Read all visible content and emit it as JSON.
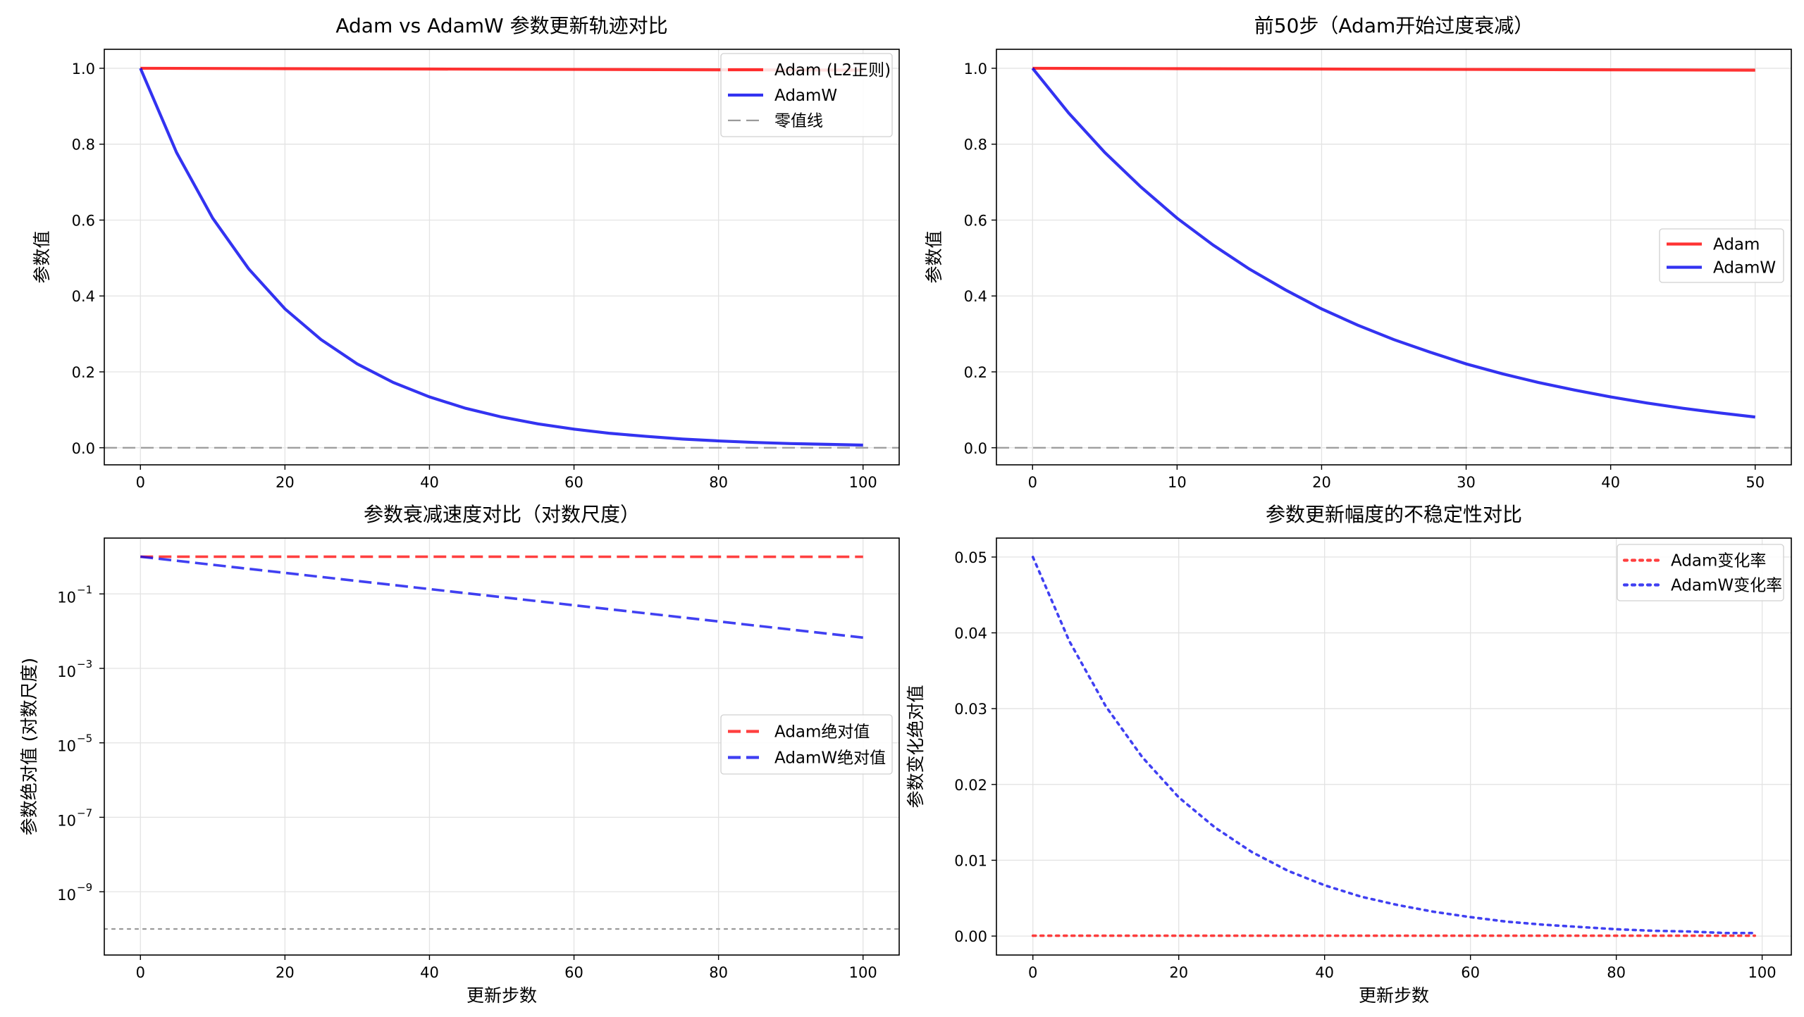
{
  "colors": {
    "adam": "#ff0000",
    "adamw": "#0000ee",
    "zero_line": "#9a9a9a",
    "grid": "#e3e3e3"
  },
  "chart_data": [
    {
      "id": "panel1",
      "type": "line",
      "title": "Adam vs AdamW 参数更新轨迹对比",
      "xlabel": "",
      "ylabel": "参数值",
      "xlim": [
        -5,
        105
      ],
      "ylim": [
        -0.045,
        1.05
      ],
      "xticks": [
        0,
        20,
        40,
        60,
        80,
        100
      ],
      "xtick_labels": [
        "0",
        "20",
        "40",
        "60",
        "80",
        "100"
      ],
      "yticks": [
        0.0,
        0.2,
        0.4,
        0.6,
        0.8,
        1.0
      ],
      "ytick_labels": [
        "0.0",
        "0.2",
        "0.4",
        "0.6",
        "0.8",
        "1.0"
      ],
      "grid": true,
      "legend": "top-right",
      "series": [
        {
          "name": "Adam (L2正则)",
          "style": "solid",
          "color": "#ff0000",
          "x": [
            0,
            20,
            40,
            60,
            80,
            100
          ],
          "y": [
            1.0,
            0.999,
            0.998,
            0.997,
            0.996,
            0.995
          ]
        },
        {
          "name": "AdamW",
          "style": "solid",
          "color": "#0000ee",
          "x": [
            0,
            5,
            10,
            15,
            20,
            25,
            30,
            35,
            40,
            45,
            50,
            55,
            60,
            65,
            70,
            75,
            80,
            85,
            90,
            95,
            100
          ],
          "y": [
            1.0,
            0.778,
            0.605,
            0.471,
            0.366,
            0.285,
            0.221,
            0.172,
            0.134,
            0.104,
            0.081,
            0.063,
            0.049,
            0.038,
            0.03,
            0.023,
            0.018,
            0.014,
            0.011,
            0.009,
            0.007
          ]
        },
        {
          "name": "零值线",
          "style": "dashed",
          "color": "#9a9a9a",
          "hline": 0.0
        }
      ]
    },
    {
      "id": "panel2",
      "type": "line",
      "title": "前50步（Adam开始过度衰减）",
      "xlabel": "",
      "ylabel": "参数值",
      "xlim": [
        -2.5,
        52.5
      ],
      "ylim": [
        -0.045,
        1.05
      ],
      "xticks": [
        0,
        10,
        20,
        30,
        40,
        50
      ],
      "xtick_labels": [
        "0",
        "10",
        "20",
        "30",
        "40",
        "50"
      ],
      "yticks": [
        0.0,
        0.2,
        0.4,
        0.6,
        0.8,
        1.0
      ],
      "ytick_labels": [
        "0.0",
        "0.2",
        "0.4",
        "0.6",
        "0.8",
        "1.0"
      ],
      "grid": true,
      "legend": "center-right",
      "series": [
        {
          "name": "Adam",
          "style": "solid",
          "color": "#ff0000",
          "x": [
            0,
            10,
            20,
            30,
            40,
            50
          ],
          "y": [
            1.0,
            0.999,
            0.998,
            0.997,
            0.996,
            0.995
          ]
        },
        {
          "name": "AdamW",
          "style": "solid",
          "color": "#0000ee",
          "x": [
            0,
            2.5,
            5,
            7.5,
            10,
            12.5,
            15,
            17.5,
            20,
            22.5,
            25,
            27.5,
            30,
            32.5,
            35,
            37.5,
            40,
            42.5,
            45,
            47.5,
            50
          ],
          "y": [
            1.0,
            0.882,
            0.778,
            0.687,
            0.605,
            0.534,
            0.471,
            0.416,
            0.366,
            0.323,
            0.285,
            0.252,
            0.221,
            0.195,
            0.172,
            0.152,
            0.134,
            0.118,
            0.104,
            0.092,
            0.081
          ]
        },
        {
          "name": "",
          "style": "dashed",
          "color": "#9a9a9a",
          "hline": 0.0
        }
      ]
    },
    {
      "id": "panel3",
      "type": "line",
      "scale": "log",
      "title": "参数衰减速度对比（对数尺度）",
      "xlabel": "更新步数",
      "ylabel": "参数绝对值 (对数尺度)",
      "xlim": [
        -5,
        105
      ],
      "ylim_log10": [
        -10.7,
        0.5
      ],
      "xticks": [
        0,
        20,
        40,
        60,
        80,
        100
      ],
      "xtick_labels": [
        "0",
        "20",
        "40",
        "60",
        "80",
        "100"
      ],
      "yticks_log10": [
        -1,
        -3,
        -5,
        -7,
        -9
      ],
      "ytick_labels": [
        "10",
        "10",
        "10",
        "10",
        "10"
      ],
      "ytick_exponents": [
        "−1",
        "−3",
        "−5",
        "−7",
        "−9"
      ],
      "grid": true,
      "legend": "center-right",
      "series": [
        {
          "name": "Adam绝对值",
          "style": "dashed",
          "color": "#ff0000",
          "x": [
            0,
            100
          ],
          "y": [
            1.0,
            0.995
          ]
        },
        {
          "name": "AdamW绝对值",
          "style": "dashed",
          "color": "#0000ee",
          "x": [
            0,
            100
          ],
          "y": [
            1.0,
            0.0067
          ]
        },
        {
          "name": "",
          "style": "dotted",
          "color": "#9a9a9a",
          "hline": 1e-10
        }
      ]
    },
    {
      "id": "panel4",
      "type": "line",
      "title": "参数更新幅度的不稳定性对比",
      "xlabel": "更新步数",
      "ylabel": "参数变化绝对值",
      "xlim": [
        -5,
        104
      ],
      "ylim": [
        -0.0025,
        0.0525
      ],
      "xticks": [
        0,
        20,
        40,
        60,
        80,
        100
      ],
      "xtick_labels": [
        "0",
        "20",
        "40",
        "60",
        "80",
        "100"
      ],
      "yticks": [
        0.0,
        0.01,
        0.02,
        0.03,
        0.04,
        0.05
      ],
      "ytick_labels": [
        "0.00",
        "0.01",
        "0.02",
        "0.03",
        "0.04",
        "0.05"
      ],
      "grid": true,
      "legend": "top-right",
      "series": [
        {
          "name": "Adam变化率",
          "style": "dotted",
          "color": "#ff0000",
          "x": [
            0,
            20,
            40,
            60,
            80,
            99
          ],
          "y": [
            5e-05,
            5e-05,
            5e-05,
            5e-05,
            5e-05,
            5e-05
          ]
        },
        {
          "name": "AdamW变化率",
          "style": "dotted",
          "color": "#0000ee",
          "x": [
            0,
            5,
            10,
            15,
            20,
            25,
            30,
            35,
            40,
            45,
            50,
            55,
            60,
            65,
            70,
            75,
            80,
            85,
            90,
            95,
            99
          ],
          "y": [
            0.05,
            0.0389,
            0.0303,
            0.0236,
            0.0183,
            0.0143,
            0.0111,
            0.0086,
            0.0067,
            0.0052,
            0.0041,
            0.0032,
            0.0025,
            0.0019,
            0.0015,
            0.0012,
            0.0009,
            0.0007,
            0.0006,
            0.0004,
            0.0004
          ]
        }
      ]
    }
  ]
}
